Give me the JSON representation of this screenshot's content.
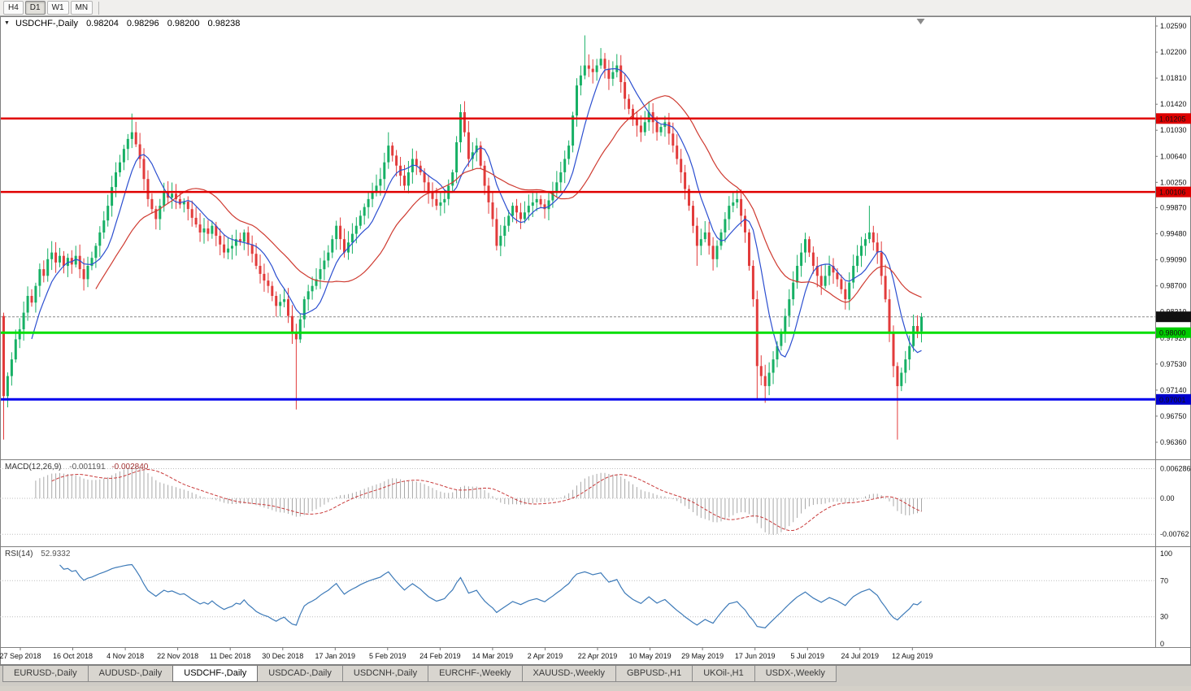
{
  "icons": {
    "chart_menu": "▼"
  },
  "toolbar": {
    "timeframes": [
      {
        "label": "H4",
        "active": false
      },
      {
        "label": "D1",
        "active": true
      },
      {
        "label": "W1",
        "active": false
      },
      {
        "label": "MN",
        "active": false
      }
    ]
  },
  "chart": {
    "title": "USDCHF-,Daily",
    "ohlc": {
      "open": "0.98204",
      "high": "0.98296",
      "low": "0.98200",
      "close": "0.98238"
    },
    "y_axis_labels": [
      "1.02590",
      "1.02200",
      "1.01810",
      "1.01420",
      "1.01030",
      "1.00640",
      "1.00250",
      "0.99870",
      "0.99480",
      "0.99090",
      "0.98700",
      "0.98310",
      "0.97920",
      "0.97530",
      "0.97140",
      "0.96750",
      "0.96360"
    ],
    "x_axis_labels": [
      "27 Sep 2018",
      "16 Oct 2018",
      "4 Nov 2018",
      "22 Nov 2018",
      "11 Dec 2018",
      "30 Dec 2018",
      "17 Jan 2019",
      "5 Feb 2019",
      "24 Feb 2019",
      "14 Mar 2019",
      "2 Apr 2019",
      "22 Apr 2019",
      "10 May 2019",
      "29 May 2019",
      "17 Jun 2019",
      "5 Jul 2019",
      "24 Jul 2019",
      "12 Aug 2019"
    ],
    "hlines": [
      {
        "name": "resistance-upper",
        "price": 1.01205,
        "label": "1.01205",
        "color": "#e00000",
        "label_bg": "#dd0000",
        "label_fg": "#ffffff",
        "width": 2.5
      },
      {
        "name": "resistance-lower",
        "price": 1.00106,
        "label": "1.00106",
        "color": "#e00000",
        "label_bg": "#dd0000",
        "label_fg": "#ffffff",
        "width": 2.5
      },
      {
        "name": "support-green",
        "price": 0.98,
        "label": "0.98000",
        "color": "#00df00",
        "label_bg": "#00cc00",
        "label_fg": "#06330b",
        "width": 3
      },
      {
        "name": "support-blue",
        "price": 0.97001,
        "label": "0.97001",
        "color": "#0000ee",
        "label_bg": "#0000cc",
        "label_fg": "#ffffff",
        "width": 3
      }
    ],
    "current_price": {
      "value": 0.98238,
      "label": "0.98238",
      "label_bg": "#111111",
      "label_fg": "#ffffff"
    }
  },
  "indicators": {
    "macd": {
      "title": "MACD(12,26,9)",
      "value_main": "-0.001191",
      "value_signal": "-0.002840",
      "axis_labels": [
        {
          "label": "0.006286",
          "value": 0.006286
        },
        {
          "label": "0.00",
          "value": 0
        },
        {
          "label": "-0.00762",
          "value": -0.00762
        }
      ]
    },
    "rsi": {
      "title": "RSI(14)",
      "value": "52.9332",
      "levels": [
        70,
        30
      ],
      "axis_labels": [
        {
          "label": "100",
          "value": 100
        },
        {
          "label": "70",
          "value": 70
        },
        {
          "label": "30",
          "value": 30
        },
        {
          "label": "0",
          "value": 0
        }
      ]
    }
  },
  "tabs": [
    {
      "label": "EURUSD-,Daily",
      "active": false
    },
    {
      "label": "AUDUSD-,Daily",
      "active": false
    },
    {
      "label": "USDCHF-,Daily",
      "active": true
    },
    {
      "label": "USDCAD-,Daily",
      "active": false
    },
    {
      "label": "USDCNH-,Daily",
      "active": false
    },
    {
      "label": "EURCHF-,Weekly",
      "active": false
    },
    {
      "label": "XAUUSD-,Weekly",
      "active": false
    },
    {
      "label": "GBPUSD-,H1",
      "active": false
    },
    {
      "label": "UKOil-,H1",
      "active": false
    },
    {
      "label": "USDX-,Weekly",
      "active": false
    }
  ],
  "colors": {
    "up": "#17b065",
    "down": "#e23b3b",
    "ma_fast": "#2c4fd0",
    "ma_slow": "#cf3b31",
    "macd_hist": "#a8a8a8",
    "macd_signal": "#c93a3a",
    "rsi_line": "#3d7ab8",
    "grid_dotted": "#bdbdbd",
    "pane_border": "#808080",
    "axis_text": "#111111"
  },
  "chart_data": {
    "type": "candlestick",
    "symbol": "USDCHF",
    "timeframe": "Daily",
    "date_range": [
      "27 Sep 2018",
      "23 Aug 2019"
    ],
    "price_axis_range": [
      0.9636,
      1.0259
    ],
    "first_open": 0.9825,
    "closes": [
      0.9705,
      0.9735,
      0.976,
      0.979,
      0.9805,
      0.983,
      0.9855,
      0.9845,
      0.987,
      0.9895,
      0.9885,
      0.991,
      0.992,
      0.9905,
      0.9915,
      0.99,
      0.9912,
      0.9902,
      0.9915,
      0.9895,
      0.988,
      0.99,
      0.9912,
      0.993,
      0.995,
      0.9968,
      0.999,
      1.0018,
      1.004,
      1.0055,
      1.0075,
      1.009,
      1.01,
      1.0082,
      1.006,
      1.003,
      1.0,
      0.9985,
      0.997,
      0.999,
      1.001,
      1.0002,
      1.0008,
      1.0,
      0.9992,
      0.9996,
      0.9985,
      0.9972,
      0.9962,
      0.995,
      0.9956,
      0.9948,
      0.996,
      0.9945,
      0.9932,
      0.992,
      0.9926,
      0.993,
      0.994,
      0.9936,
      0.995,
      0.9932,
      0.9918,
      0.99,
      0.9888,
      0.9878,
      0.987,
      0.9855,
      0.984,
      0.9846,
      0.985,
      0.9825,
      0.98,
      0.979,
      0.982,
      0.985,
      0.9862,
      0.987,
      0.988,
      0.9895,
      0.9908,
      0.992,
      0.994,
      0.996,
      0.994,
      0.992,
      0.9935,
      0.9948,
      0.996,
      0.9975,
      0.9988,
      1.0,
      1.001,
      1.002,
      1.003,
      1.0055,
      1.008,
      1.0065,
      1.005,
      1.0035,
      1.002,
      1.004,
      1.006,
      1.005,
      1.004,
      1.0025,
      1.001,
      1.0,
      0.999,
      0.9995,
      1.0,
      1.002,
      1.004,
      1.0085,
      1.013,
      1.01,
      1.006,
      1.007,
      1.008,
      1.005,
      1.002,
      0.9995,
      0.997,
      0.993,
      0.9945,
      0.996,
      0.9975,
      0.999,
      0.998,
      0.997,
      0.998,
      0.999,
      0.9995,
      1.0,
      0.9992,
      0.9985,
      0.9998,
      1.001,
      1.0025,
      1.004,
      1.006,
      1.008,
      1.0125,
      1.017,
      1.0185,
      1.02,
      1.0195,
      1.019,
      1.02,
      1.021,
      1.0195,
      1.018,
      1.019,
      1.02,
      1.0175,
      1.015,
      1.0135,
      1.012,
      1.011,
      1.01,
      1.0115,
      1.013,
      1.0115,
      1.01,
      1.0108,
      1.0115,
      1.0098,
      1.008,
      1.006,
      1.004,
      1.0015,
      0.999,
      0.996,
      0.993,
      0.994,
      0.995,
      0.993,
      0.991,
      0.993,
      0.995,
      0.997,
      0.999,
      0.9995,
      1.0,
      0.9975,
      0.995,
      0.99,
      0.985,
      0.975,
      0.9735,
      0.972,
      0.974,
      0.976,
      0.978,
      0.98,
      0.9825,
      0.985,
      0.9875,
      0.99,
      0.992,
      0.994,
      0.992,
      0.99,
      0.9885,
      0.987,
      0.9885,
      0.99,
      0.989,
      0.988,
      0.9865,
      0.985,
      0.9875,
      0.99,
      0.9915,
      0.993,
      0.994,
      0.995,
      0.9935,
      0.992,
      0.9885,
      0.985,
      0.98,
      0.975,
      0.972,
      0.974,
      0.976,
      0.978,
      0.981,
      0.9802,
      0.98238
    ],
    "wick_overrides": {
      "0": {
        "high": 0.983,
        "low": 0.964
      },
      "32": {
        "high": 1.0128
      },
      "73": {
        "low": 0.9685
      },
      "96": {
        "high": 1.01
      },
      "114": {
        "high": 1.0142
      },
      "145": {
        "high": 1.0245
      },
      "149": {
        "high": 1.0226
      },
      "173": {
        "low": 0.99
      },
      "183": {
        "high": 1.0014
      },
      "188": {
        "low": 0.97
      },
      "190": {
        "low": 0.9695
      },
      "216": {
        "high": 0.999
      },
      "223": {
        "low": 0.964
      },
      "229": {
        "high": 0.98296
      }
    },
    "overlays": {
      "ma_fast_period": 8,
      "ma_slow_period": 24
    },
    "macd_params": [
      12,
      26,
      9
    ],
    "rsi_period": 14
  }
}
